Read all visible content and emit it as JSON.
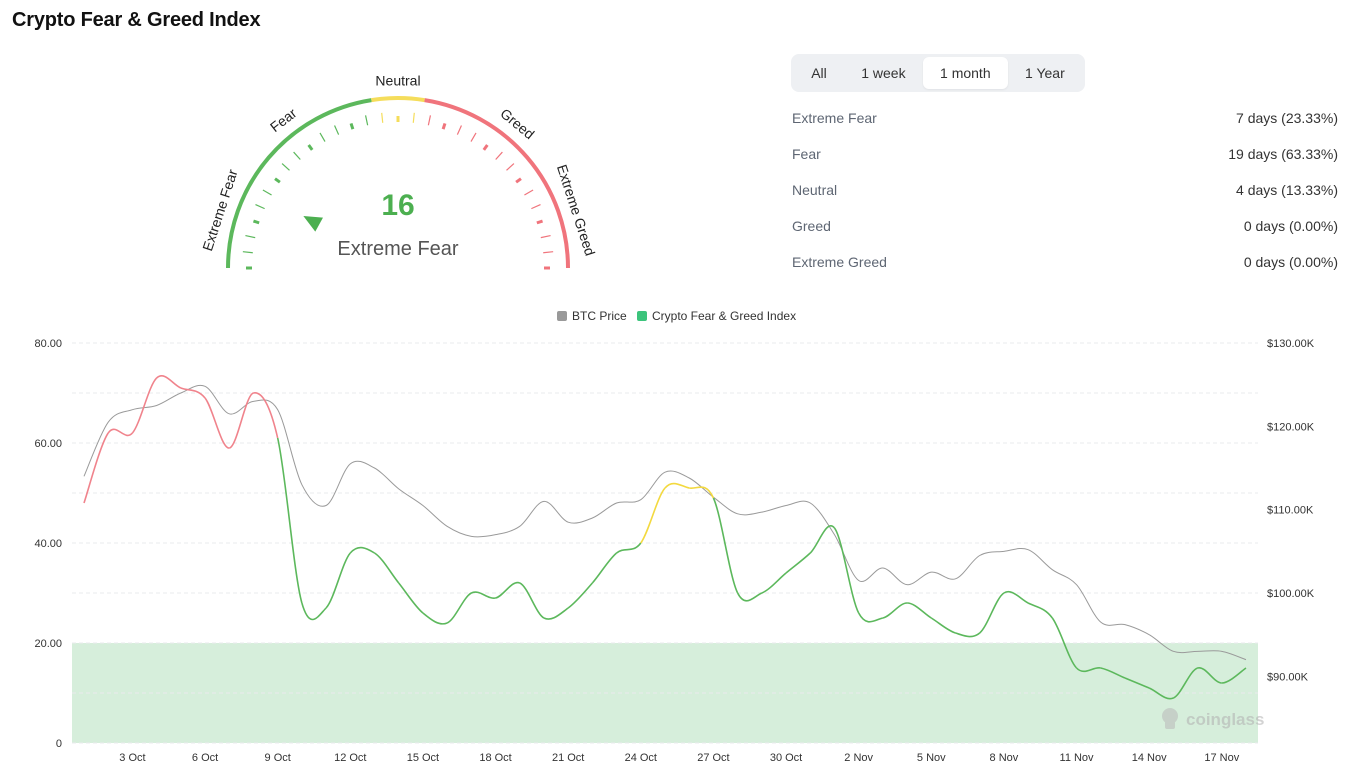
{
  "title": "Crypto Fear & Greed Index",
  "gauge": {
    "value": "16",
    "label": "Extreme Fear",
    "value_fraction": 0.16,
    "zones": [
      "Extreme Fear",
      "Fear",
      "Neutral",
      "Greed",
      "Extreme Greed"
    ],
    "colors": {
      "fear": "#5cb85c",
      "neutral": "#f5dd5b",
      "greed": "#f0747c",
      "value": "#4caf50"
    }
  },
  "tabs": [
    {
      "label": "All",
      "active": false
    },
    {
      "label": "1 week",
      "active": false
    },
    {
      "label": "1 month",
      "active": true
    },
    {
      "label": "1 Year",
      "active": false
    }
  ],
  "stats": [
    {
      "label": "Extreme Fear",
      "value": "7 days (23.33%)"
    },
    {
      "label": "Fear",
      "value": "19 days (63.33%)"
    },
    {
      "label": "Neutral",
      "value": "4 days (13.33%)"
    },
    {
      "label": "Greed",
      "value": "0 days (0.00%)"
    },
    {
      "label": "Extreme Greed",
      "value": "0 days (0.00%)"
    }
  ],
  "watermark": "coinglass",
  "chart_data": {
    "type": "line",
    "legend": [
      "BTC Price",
      "Crypto Fear & Greed Index"
    ],
    "legend_position": "top-center",
    "legend_colors": [
      "#999999",
      "#3cc47c"
    ],
    "x_tick_labels": [
      "3 Oct",
      "6 Oct",
      "9 Oct",
      "12 Oct",
      "15 Oct",
      "18 Oct",
      "21 Oct",
      "24 Oct",
      "27 Oct",
      "30 Oct",
      "2 Nov",
      "5 Nov",
      "8 Nov",
      "11 Nov",
      "14 Nov",
      "17 Nov"
    ],
    "x_range": [
      "1 Oct",
      "18 Nov"
    ],
    "y_left_ticks": [
      "0",
      "20.00",
      "40.00",
      "60.00",
      "80.00"
    ],
    "y_left_range": [
      0,
      80
    ],
    "y_right_ticks": [
      "$90.00K",
      "$100.00K",
      "$110.00K",
      "$120.00K",
      "$130.00K"
    ],
    "y_right_range": [
      82000,
      130000
    ],
    "extreme_fear_band": [
      0,
      20
    ],
    "grid": true,
    "series": [
      {
        "name": "Crypto Fear & Greed Index",
        "axis": "left",
        "dates": [
          "1 Oct",
          "2 Oct",
          "3 Oct",
          "4 Oct",
          "5 Oct",
          "6 Oct",
          "7 Oct",
          "8 Oct",
          "9 Oct",
          "10 Oct",
          "11 Oct",
          "12 Oct",
          "13 Oct",
          "14 Oct",
          "15 Oct",
          "16 Oct",
          "17 Oct",
          "18 Oct",
          "19 Oct",
          "20 Oct",
          "21 Oct",
          "22 Oct",
          "23 Oct",
          "24 Oct",
          "25 Oct",
          "26 Oct",
          "27 Oct",
          "28 Oct",
          "29 Oct",
          "30 Oct",
          "31 Oct",
          "1 Nov",
          "2 Nov",
          "3 Nov",
          "4 Nov",
          "5 Nov",
          "6 Nov",
          "7 Nov",
          "8 Nov",
          "9 Nov",
          "10 Nov",
          "11 Nov",
          "12 Nov",
          "13 Nov",
          "14 Nov",
          "15 Nov",
          "16 Nov",
          "17 Nov",
          "18 Nov"
        ],
        "values": [
          48,
          62,
          62,
          73,
          71,
          69,
          59,
          70,
          61,
          28,
          27,
          38,
          38,
          32,
          26,
          24,
          30,
          29,
          32,
          25,
          27,
          32,
          38,
          40,
          51,
          51,
          49,
          30,
          30,
          34,
          38,
          43,
          26,
          25,
          28,
          25,
          22,
          22,
          30,
          28,
          25,
          15,
          15,
          13,
          11,
          9,
          15,
          12,
          15
        ]
      },
      {
        "name": "BTC Price",
        "axis": "right",
        "dates": [
          "1 Oct",
          "2 Oct",
          "3 Oct",
          "4 Oct",
          "5 Oct",
          "6 Oct",
          "7 Oct",
          "8 Oct",
          "9 Oct",
          "10 Oct",
          "11 Oct",
          "12 Oct",
          "13 Oct",
          "14 Oct",
          "15 Oct",
          "16 Oct",
          "17 Oct",
          "18 Oct",
          "19 Oct",
          "20 Oct",
          "21 Oct",
          "22 Oct",
          "23 Oct",
          "24 Oct",
          "25 Oct",
          "26 Oct",
          "27 Oct",
          "28 Oct",
          "29 Oct",
          "30 Oct",
          "31 Oct",
          "1 Nov",
          "2 Nov",
          "3 Nov",
          "4 Nov",
          "5 Nov",
          "6 Nov",
          "7 Nov",
          "8 Nov",
          "9 Nov",
          "10 Nov",
          "11 Nov",
          "12 Nov",
          "13 Nov",
          "14 Nov",
          "15 Nov",
          "16 Nov",
          "17 Nov",
          "18 Nov"
        ],
        "values": [
          114000,
          120500,
          122000,
          122500,
          124000,
          124800,
          121500,
          123000,
          122000,
          113000,
          110500,
          115500,
          115000,
          112500,
          110500,
          108000,
          106800,
          107000,
          108000,
          111000,
          108500,
          109000,
          110800,
          111200,
          114500,
          113800,
          111500,
          109500,
          109700,
          110500,
          110800,
          107000,
          101500,
          103000,
          101000,
          102500,
          101700,
          104500,
          105000,
          105200,
          102800,
          101000,
          96500,
          96200,
          95000,
          93000,
          93000,
          93000,
          92000
        ]
      }
    ]
  }
}
